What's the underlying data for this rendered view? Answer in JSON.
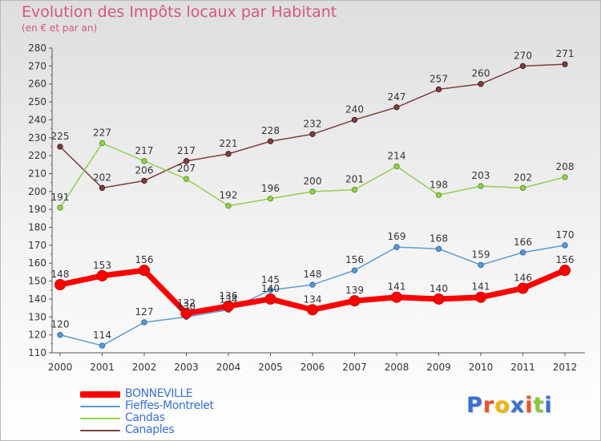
{
  "page": {
    "title": "Evolution des Impôts locaux par Habitant",
    "subtitle": "(en € et par an)"
  },
  "logo": {
    "text": "Proxiti",
    "letter_colors": [
      "#3b6fd1",
      "#e8542c",
      "#f0b400",
      "#3b6fd1",
      "#e8542c",
      "#8cc63f",
      "#3b6fd1"
    ]
  },
  "chart_data": {
    "type": "line",
    "x": [
      2000,
      2001,
      2002,
      2003,
      2004,
      2005,
      2006,
      2007,
      2008,
      2009,
      2010,
      2011,
      2012
    ],
    "ylim": [
      110,
      280
    ],
    "y_ticks": [
      110,
      120,
      130,
      140,
      150,
      160,
      170,
      180,
      190,
      200,
      210,
      220,
      230,
      240,
      250,
      260,
      270,
      280
    ],
    "grid": false,
    "legend_position": "bottom-left",
    "series": [
      {
        "name": "BONNEVILLE",
        "color": "#ff0000",
        "values": [
          148,
          153,
          156,
          132,
          136,
          140,
          134,
          139,
          141,
          140,
          141,
          146,
          156
        ]
      },
      {
        "name": "Fieffes-Montrelet",
        "color": "#5b9bd5",
        "values": [
          120,
          114,
          127,
          130,
          134,
          145,
          148,
          156,
          169,
          168,
          159,
          166,
          170
        ]
      },
      {
        "name": "Candas",
        "color": "#92d050",
        "values": [
          191,
          227,
          217,
          207,
          192,
          196,
          200,
          201,
          214,
          198,
          203,
          202,
          208
        ]
      },
      {
        "name": "Canaples",
        "color": "#7f3f3f",
        "values": [
          225,
          202,
          206,
          217,
          221,
          228,
          232,
          240,
          247,
          257,
          260,
          270,
          271
        ]
      }
    ]
  }
}
